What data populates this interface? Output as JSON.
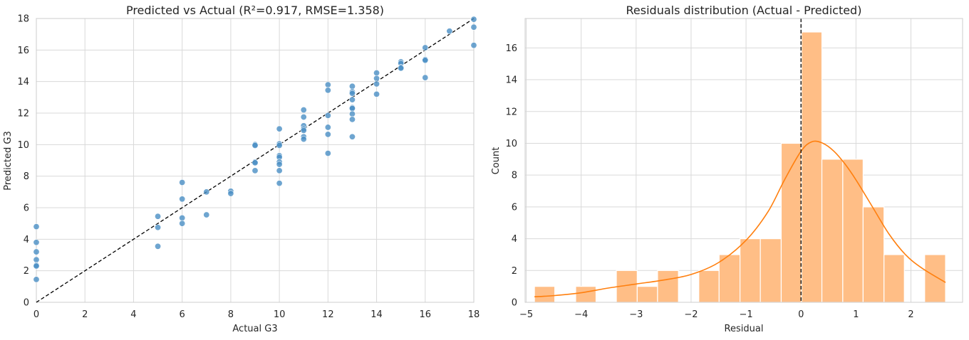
{
  "chart_data": [
    {
      "type": "scatter",
      "title": "Predicted vs Actual (R²=0.917, RMSE=1.358)",
      "xlabel": "Actual G3",
      "ylabel": "Predicted G3",
      "xlim": [
        0,
        18
      ],
      "ylim": [
        0,
        18
      ],
      "xticks": [
        "0",
        "2",
        "4",
        "6",
        "8",
        "10",
        "12",
        "14",
        "16",
        "18"
      ],
      "yticks": [
        "0",
        "2",
        "4",
        "6",
        "8",
        "10",
        "12",
        "14",
        "16",
        "18"
      ],
      "grid": true,
      "colors": {
        "points": "#4a8fc4",
        "point_edge": "#ffffff",
        "reference_line": "#000000"
      },
      "reference_line": {
        "style": "dashed",
        "from": [
          0,
          0
        ],
        "to": [
          18,
          18
        ]
      },
      "points": [
        [
          0,
          4.8
        ],
        [
          0,
          3.8
        ],
        [
          0,
          3.2
        ],
        [
          0,
          2.7
        ],
        [
          0,
          2.35
        ],
        [
          0,
          2.3
        ],
        [
          0,
          1.45
        ],
        [
          5,
          5.45
        ],
        [
          5,
          4.75
        ],
        [
          5,
          3.55
        ],
        [
          6,
          7.6
        ],
        [
          6,
          6.55
        ],
        [
          6,
          5.35
        ],
        [
          6,
          5.0
        ],
        [
          7,
          7.0
        ],
        [
          7,
          5.55
        ],
        [
          8,
          7.05
        ],
        [
          8,
          6.9
        ],
        [
          9,
          10.0
        ],
        [
          9,
          9.95
        ],
        [
          9,
          8.9
        ],
        [
          9,
          8.85
        ],
        [
          9,
          8.35
        ],
        [
          10,
          11.0
        ],
        [
          10,
          10.05
        ],
        [
          10,
          9.95
        ],
        [
          10,
          9.3
        ],
        [
          10,
          9.2
        ],
        [
          10,
          8.9
        ],
        [
          10,
          8.75
        ],
        [
          10,
          8.35
        ],
        [
          10,
          7.55
        ],
        [
          11,
          12.2
        ],
        [
          11,
          11.75
        ],
        [
          11,
          11.2
        ],
        [
          11,
          11.0
        ],
        [
          11,
          10.9
        ],
        [
          11,
          10.5
        ],
        [
          11,
          10.35
        ],
        [
          12,
          13.8
        ],
        [
          12,
          13.45
        ],
        [
          12,
          11.85
        ],
        [
          12,
          11.1
        ],
        [
          12,
          10.65
        ],
        [
          12,
          9.45
        ],
        [
          13,
          13.7
        ],
        [
          13,
          13.35
        ],
        [
          13,
          13.25
        ],
        [
          13,
          12.85
        ],
        [
          13,
          12.35
        ],
        [
          13,
          12.3
        ],
        [
          13,
          11.95
        ],
        [
          13,
          11.6
        ],
        [
          13,
          10.5
        ],
        [
          14,
          14.55
        ],
        [
          14,
          14.2
        ],
        [
          14,
          13.85
        ],
        [
          14,
          13.2
        ],
        [
          15,
          15.25
        ],
        [
          15,
          15.15
        ],
        [
          15,
          14.9
        ],
        [
          15,
          14.85
        ],
        [
          16,
          16.15
        ],
        [
          16,
          15.4
        ],
        [
          16,
          15.35
        ],
        [
          16,
          14.25
        ],
        [
          17,
          17.2
        ],
        [
          18,
          17.95
        ],
        [
          18,
          17.45
        ],
        [
          18,
          16.3
        ]
      ]
    },
    {
      "type": "bar",
      "title": "Residuals distribution (Actual - Predicted)",
      "xlabel": "Residual",
      "ylabel": "Count",
      "xlim": [
        -5.02,
        2.94
      ],
      "ylim": [
        0,
        17.85
      ],
      "xticks": [
        "−5",
        "−4",
        "−3",
        "−2",
        "−1",
        "0",
        "1",
        "2"
      ],
      "yticks": [
        "0",
        "2",
        "4",
        "6",
        "8",
        "10",
        "12",
        "14",
        "16"
      ],
      "grid": true,
      "colors": {
        "bars": "#ffbe86",
        "bar_edge": "#ffffff",
        "kde": "#ff7f0e",
        "zero_line": "#000000"
      },
      "zero_line": {
        "style": "dashed",
        "x": 0
      },
      "bins": [
        {
          "start": -4.85,
          "end": -4.48,
          "count": 1
        },
        {
          "start": -4.48,
          "end": -4.1,
          "count": 0
        },
        {
          "start": -4.1,
          "end": -3.73,
          "count": 1
        },
        {
          "start": -3.73,
          "end": -3.36,
          "count": 0
        },
        {
          "start": -3.36,
          "end": -2.98,
          "count": 2
        },
        {
          "start": -2.98,
          "end": -2.61,
          "count": 1
        },
        {
          "start": -2.61,
          "end": -2.23,
          "count": 2
        },
        {
          "start": -2.23,
          "end": -1.86,
          "count": 0
        },
        {
          "start": -1.86,
          "end": -1.49,
          "count": 2
        },
        {
          "start": -1.49,
          "end": -1.11,
          "count": 3
        },
        {
          "start": -1.11,
          "end": -0.74,
          "count": 4
        },
        {
          "start": -0.74,
          "end": -0.36,
          "count": 4
        },
        {
          "start": -0.36,
          "end": 0.01,
          "count": 10
        },
        {
          "start": 0.01,
          "end": 0.38,
          "count": 17
        },
        {
          "start": 0.38,
          "end": 0.76,
          "count": 9
        },
        {
          "start": 0.76,
          "end": 1.13,
          "count": 9
        },
        {
          "start": 1.13,
          "end": 1.51,
          "count": 6
        },
        {
          "start": 1.51,
          "end": 1.88,
          "count": 3
        },
        {
          "start": 1.88,
          "end": 2.25,
          "count": 0
        },
        {
          "start": 2.25,
          "end": 2.63,
          "count": 3
        }
      ],
      "kde": [
        [
          -4.85,
          0.35
        ],
        [
          -4.5,
          0.42
        ],
        [
          -4.0,
          0.6
        ],
        [
          -3.5,
          0.9
        ],
        [
          -3.0,
          1.15
        ],
        [
          -2.5,
          1.4
        ],
        [
          -2.0,
          1.75
        ],
        [
          -1.5,
          2.5
        ],
        [
          -1.0,
          3.9
        ],
        [
          -0.6,
          5.7
        ],
        [
          -0.3,
          7.7
        ],
        [
          0.0,
          9.5
        ],
        [
          0.2,
          10.1
        ],
        [
          0.4,
          10.0
        ],
        [
          0.6,
          9.5
        ],
        [
          0.8,
          8.7
        ],
        [
          1.0,
          7.7
        ],
        [
          1.3,
          6.0
        ],
        [
          1.6,
          4.3
        ],
        [
          1.9,
          3.0
        ],
        [
          2.2,
          2.15
        ],
        [
          2.63,
          1.25
        ]
      ]
    }
  ]
}
